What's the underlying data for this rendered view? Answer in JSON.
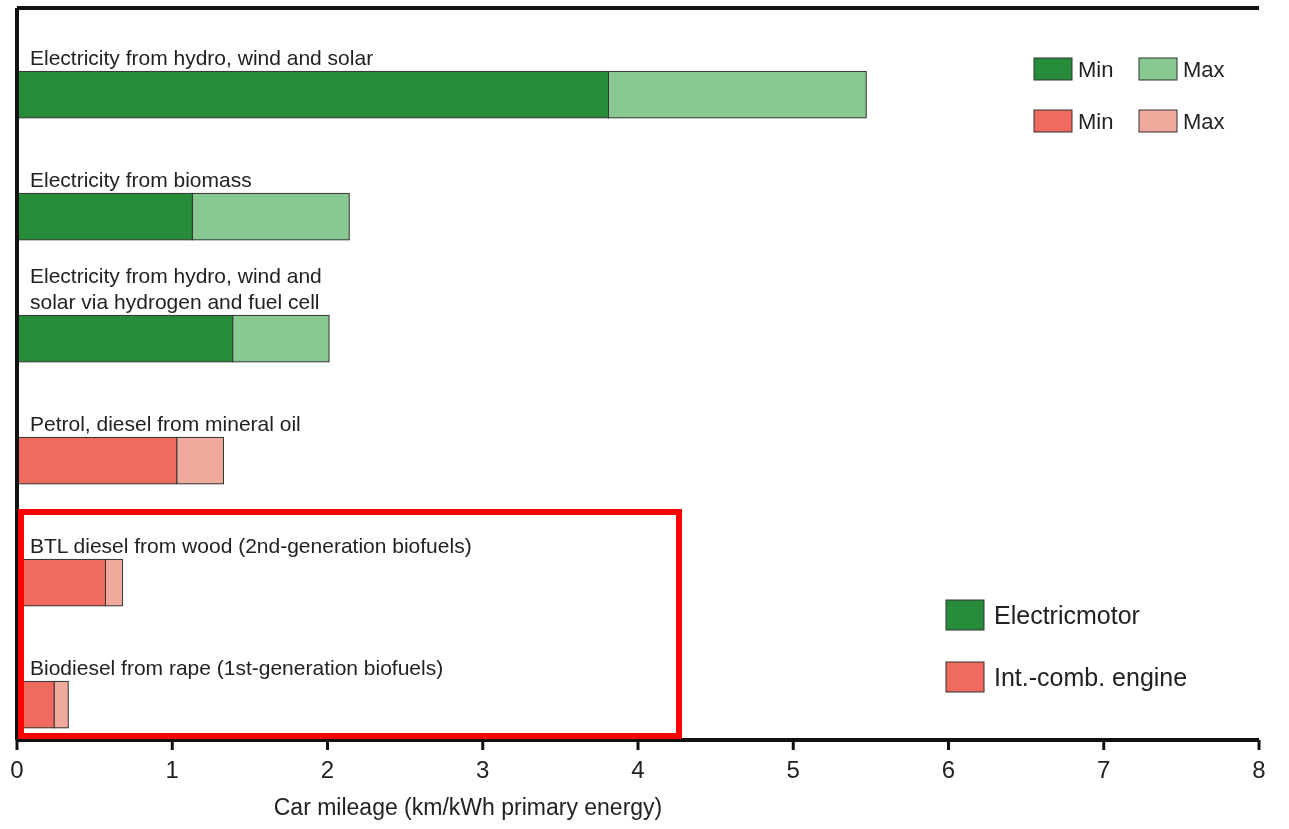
{
  "chart_data": {
    "type": "bar",
    "orientation": "horizontal",
    "stacked": true,
    "categories": [
      "Electricity from hydro, wind and solar",
      "Electricity from biomass",
      "Electricity from hydro, wind and\nsolar via hydrogen and fuel cell",
      "Petrol, diesel from mineral oil",
      "BTL diesel from wood (2nd-generation biofuels)",
      "Biodiesel from rape (1st-generation biofuels)"
    ],
    "series": [
      {
        "name": "Min",
        "color": "#268c3a",
        "values": [
          3.81,
          1.13,
          1.39,
          null,
          null,
          null
        ]
      },
      {
        "name": "Max",
        "color": "#88c891",
        "values": [
          1.66,
          1.01,
          0.62,
          null,
          null,
          null
        ]
      },
      {
        "name": "Min",
        "color": "#ef6a5f",
        "values": [
          null,
          null,
          null,
          1.03,
          0.57,
          0.24
        ]
      },
      {
        "name": "Max",
        "color": "#f0aa9d",
        "values": [
          null,
          null,
          null,
          0.3,
          0.11,
          0.09
        ]
      }
    ],
    "xlim": [
      0,
      8
    ],
    "xticks": [
      0,
      1,
      2,
      3,
      4,
      5,
      6,
      7,
      8
    ],
    "xlabel": "Car mileage (km/kWh primary energy)",
    "legend": "top right",
    "grid": false,
    "annotations": [
      "Electricmotor",
      "Int.-comb. engine"
    ]
  }
}
